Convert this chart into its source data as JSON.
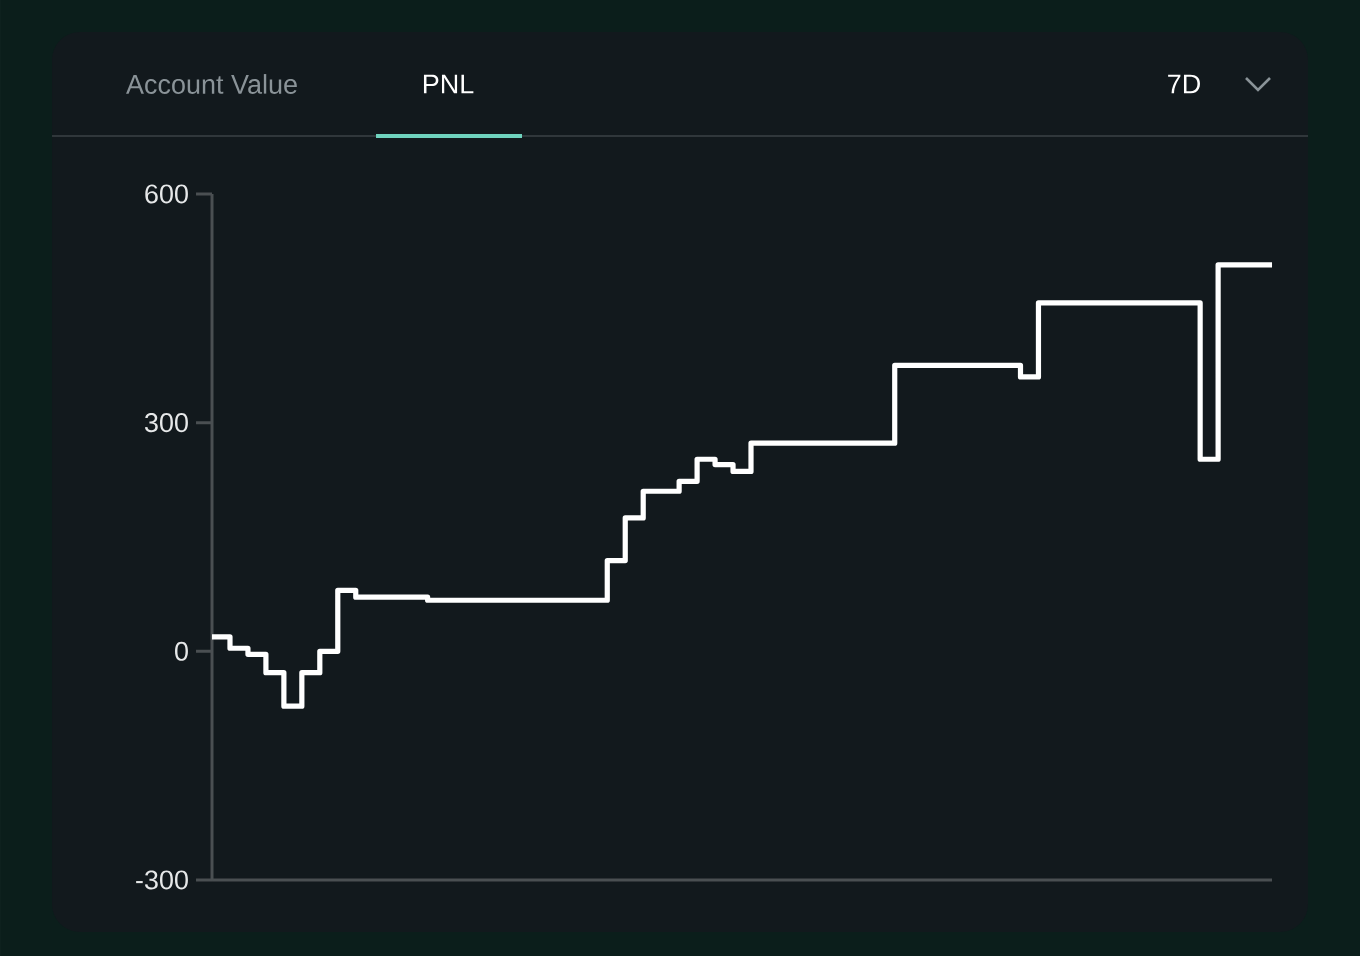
{
  "chart_data": {
    "type": "step",
    "annotations": [
      "Account Value",
      "PNL",
      "7D"
    ],
    "categories": [
      null,
      null,
      null,
      null,
      null,
      null,
      null,
      null,
      null,
      null,
      null,
      null,
      null,
      null,
      null,
      null,
      null,
      null,
      null,
      null,
      null,
      null,
      null,
      null,
      null,
      null,
      null,
      null,
      null,
      null,
      null,
      null,
      null,
      null,
      null,
      null,
      null,
      null,
      null,
      null,
      null,
      null,
      null,
      null,
      null,
      null,
      null,
      null,
      null,
      null,
      null,
      null,
      null,
      null,
      null,
      null,
      null,
      null,
      null,
      null
    ],
    "values": [
      19,
      4,
      -4,
      -28,
      -72,
      -28,
      0,
      80,
      71,
      71,
      71,
      71,
      67,
      67,
      67,
      67,
      67,
      67,
      67,
      67,
      67,
      67,
      119,
      175,
      210,
      210,
      223,
      252,
      245,
      236,
      273,
      273,
      273,
      273,
      273,
      273,
      273,
      273,
      375,
      375,
      375,
      375,
      375,
      375,
      375,
      360,
      457,
      457,
      457,
      457,
      457,
      457,
      457,
      457,
      457,
      252,
      507,
      507,
      507,
      507
    ],
    "color": "#ffffff",
    "ylim": [
      -300,
      600
    ],
    "yticks": [
      -300,
      0,
      300,
      600
    ],
    "tick_labels": "y"
  }
}
